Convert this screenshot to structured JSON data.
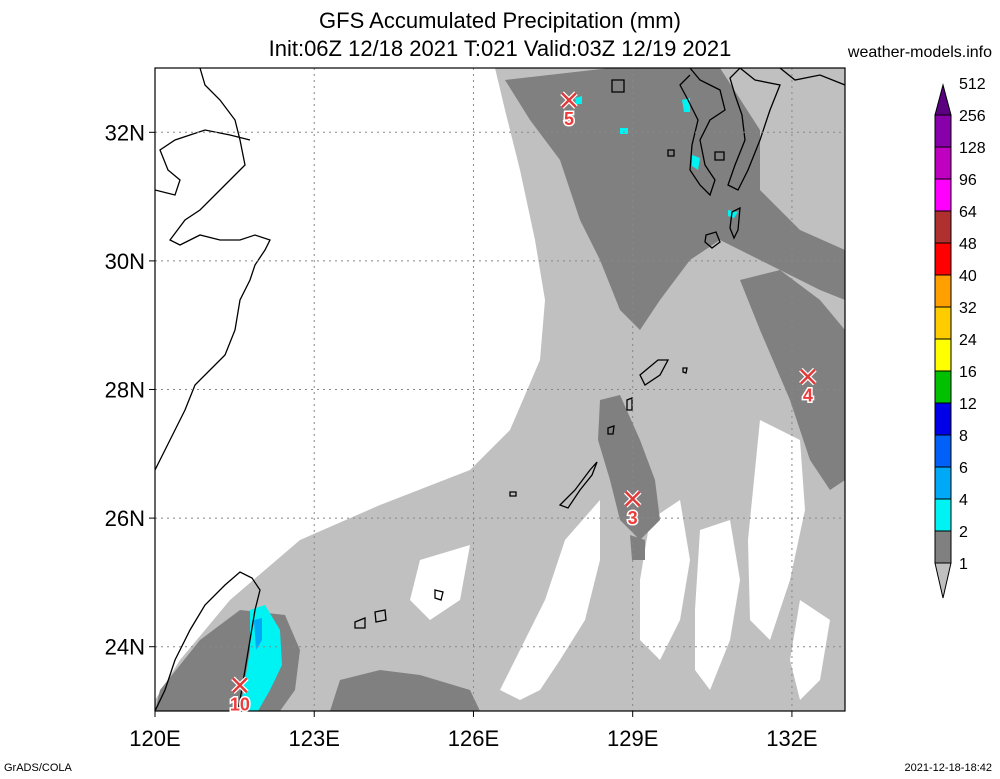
{
  "header": {
    "title": "GFS Accumulated Precipitation (mm)",
    "subtitle": "Init:06Z 12/18 2021 T:021 Valid:03Z 12/19 2021",
    "brand": "weather-models.info"
  },
  "footer": {
    "software": "GrADS/COLA",
    "timestamp": "2021-12-18-18:42"
  },
  "map": {
    "lon_range": [
      120,
      133
    ],
    "lat_range": [
      23,
      33
    ],
    "lon_ticks": [
      "120E",
      "123E",
      "126E",
      "129E",
      "132E"
    ],
    "lat_ticks": [
      "24N",
      "26N",
      "28N",
      "30N",
      "32N"
    ],
    "gridlines": "dotted",
    "stations": [
      {
        "label": "5",
        "lon": 127.8,
        "lat": 32.5
      },
      {
        "label": "4",
        "lon": 132.3,
        "lat": 28.2
      },
      {
        "label": "3",
        "lon": 129.0,
        "lat": 26.3
      },
      {
        "label": "10",
        "lon": 121.6,
        "lat": 23.4
      }
    ]
  },
  "colorbar": {
    "levels": [
      "1",
      "2",
      "4",
      "6",
      "8",
      "12",
      "16",
      "24",
      "32",
      "40",
      "48",
      "64",
      "96",
      "128",
      "256",
      "512"
    ],
    "colors": [
      "#c0c0c0",
      "#808080",
      "#00f3f3",
      "#00a8f8",
      "#0060f8",
      "#0000e8",
      "#00c000",
      "#ffff00",
      "#ffcc00",
      "#ffa000",
      "#ff0000",
      "#b03030",
      "#ff00ff",
      "#c000c0",
      "#8800aa",
      "#5a0080"
    ]
  }
}
